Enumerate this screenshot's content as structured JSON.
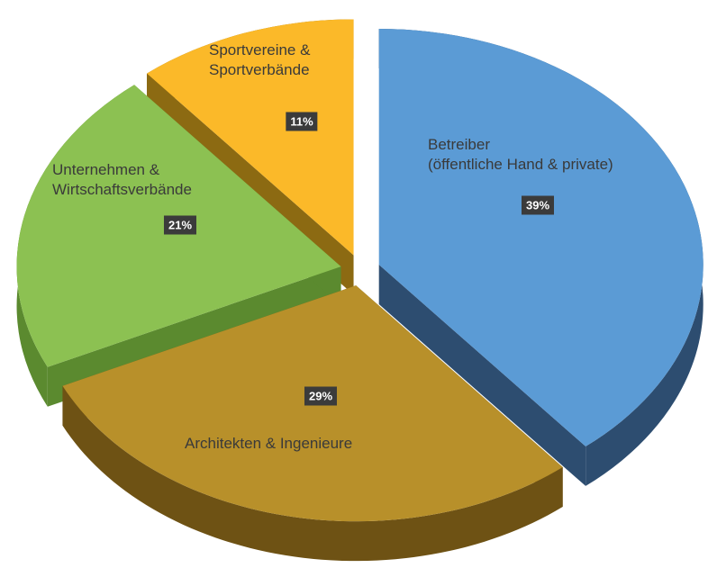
{
  "chart_data": {
    "type": "pie",
    "categories": [
      "Betreiber\n(öffentliche Hand & private)",
      "Architekten & Ingenieure",
      "Unternehmen &\nWirtschaftsverbände",
      "Sportvereine &\nSportverbände"
    ],
    "values": [
      39,
      29,
      21,
      11
    ],
    "value_labels": [
      "39%",
      "29%",
      "21%",
      "11%"
    ],
    "colors": [
      "#5b9bd5",
      "#b8902a",
      "#8cc152",
      "#fbb929"
    ],
    "side_colors": [
      "#2d4d70",
      "#6e5214",
      "#5b8a2f",
      "#8c6a12"
    ]
  }
}
